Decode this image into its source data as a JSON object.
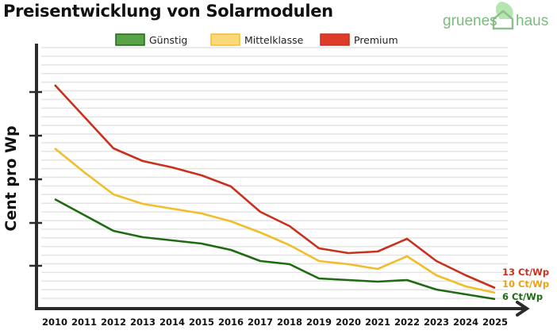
{
  "chart_data": {
    "type": "line",
    "title": "Preisentwicklung von Solarmodulen",
    "xlabel": "",
    "ylabel": "Cent pro Wp",
    "x": [
      "2010",
      "2011",
      "2012",
      "2013",
      "2014",
      "2015",
      "2016",
      "2017",
      "2018",
      "2019",
      "2020",
      "2021",
      "2022",
      "2023",
      "2024",
      "2025"
    ],
    "ylim": [
      0,
      150
    ],
    "grid": true,
    "legend_position": "top-center",
    "series": [
      {
        "name": "Günstig",
        "color": "#1e6b12",
        "legend_fill": "#5aa247",
        "values": [
          69,
          59,
          49,
          45,
          43,
          41,
          37,
          30,
          28,
          19,
          18,
          17,
          18,
          12,
          9,
          6
        ],
        "end_label": "6 Ct/Wp"
      },
      {
        "name": "Mittelklasse",
        "color": "#f2bd2a",
        "legend_fill": "#fdd87a",
        "values": [
          101,
          86,
          72,
          66,
          63,
          60,
          55,
          48,
          40,
          30,
          28,
          25,
          33,
          21,
          14,
          10
        ],
        "end_label": "10 Ct/Wp",
        "label_color": "#e8a21a"
      },
      {
        "name": "Premium",
        "color": "#c9301e",
        "legend_fill": "#df3b2a",
        "values": [
          141,
          121,
          101,
          93,
          89,
          84,
          77,
          61,
          52,
          38,
          35,
          36,
          44,
          30,
          21,
          13
        ],
        "end_label": "13 Ct/Wp"
      }
    ]
  },
  "logo": {
    "left": "gruenes",
    "right": "haus"
  }
}
